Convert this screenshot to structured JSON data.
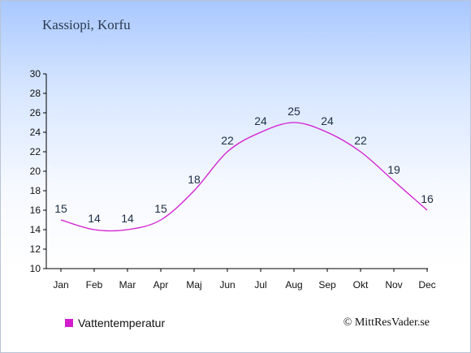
{
  "location": "Kassiopi, Korfu",
  "copyright": "© MittResVader.se",
  "colors": {
    "line": "#d41ccf",
    "axis": "#000000",
    "data_label": "#1f2f45"
  },
  "chart_data": {
    "type": "line",
    "categories": [
      "Jan",
      "Feb",
      "Mar",
      "Apr",
      "Maj",
      "Jun",
      "Jul",
      "Aug",
      "Sep",
      "Okt",
      "Nov",
      "Dec"
    ],
    "series": [
      {
        "name": "Vattentemperatur",
        "values": [
          15,
          14,
          14,
          15,
          18,
          22,
          24,
          25,
          24,
          22,
          19,
          16
        ]
      }
    ],
    "ylim": [
      10,
      30
    ],
    "yticks": [
      10,
      12,
      14,
      16,
      18,
      20,
      22,
      24,
      26,
      28,
      30
    ],
    "grid": false,
    "legend": "bottom-left"
  }
}
